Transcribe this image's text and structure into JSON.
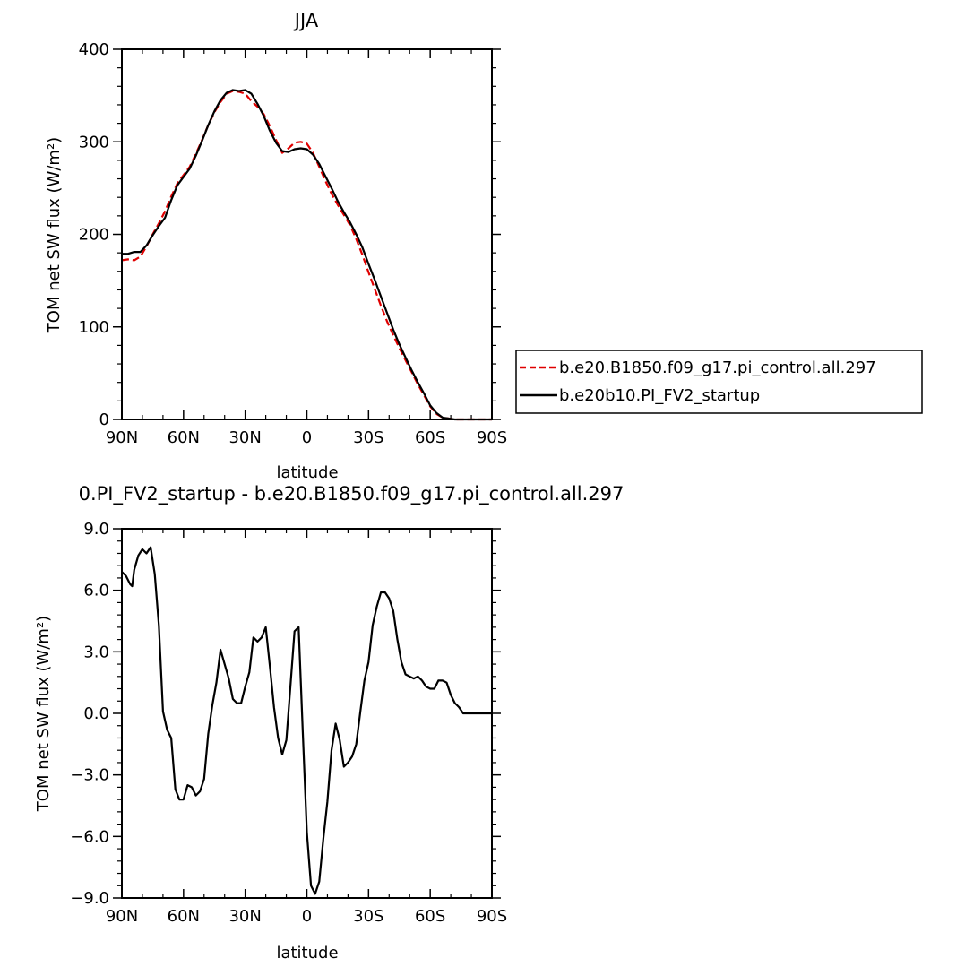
{
  "chart_data": [
    {
      "type": "line",
      "title": "JJA",
      "xlabel": "latitude",
      "ylabel": "TOM net SW flux (W/m²)",
      "ylim": [
        0,
        400
      ],
      "xlim": [
        90,
        -90
      ],
      "x_tick_labels": [
        "90N",
        "60N",
        "30N",
        "0",
        "30S",
        "60S",
        "90S"
      ],
      "y_tick_labels": [
        "0",
        "100",
        "200",
        "300",
        "400"
      ],
      "legend_position": "right",
      "series": [
        {
          "name": "b.e20.B1850.f09_g17.pi_control.all.297",
          "color": "#e00000",
          "style": "dashed",
          "x": [
            90,
            87,
            84,
            81,
            78,
            75,
            72,
            69,
            66,
            63,
            60,
            57,
            54,
            51,
            48,
            45,
            42,
            39,
            36,
            33,
            30,
            27,
            24,
            21,
            18,
            15,
            12,
            9,
            6,
            3,
            0,
            -3,
            -6,
            -9,
            -12,
            -15,
            -18,
            -21,
            -24,
            -27,
            -30,
            -33,
            -36,
            -39,
            -42,
            -45,
            -48,
            -51,
            -54,
            -57,
            -60,
            -63,
            -66,
            -69,
            -72,
            -75,
            -78,
            -81,
            -84,
            -87,
            -90
          ],
          "y": [
            172,
            173,
            172,
            176,
            187,
            200,
            212,
            225,
            241,
            255,
            264,
            273,
            287,
            302,
            318,
            332,
            343,
            352,
            355,
            354,
            352,
            344,
            338,
            330,
            317,
            302,
            288,
            293,
            299,
            300,
            298,
            288,
            273,
            258,
            244,
            232,
            221,
            210,
            195,
            178,
            159,
            141,
            123,
            106,
            91,
            77,
            64,
            51,
            38,
            26,
            14,
            6,
            2,
            1,
            0,
            0,
            0,
            0,
            0,
            0,
            0
          ]
        },
        {
          "name": "b.e20b10.PI_FV2_startup",
          "color": "#000000",
          "style": "solid",
          "x": [
            90,
            87,
            84,
            81,
            78,
            75,
            72,
            69,
            66,
            63,
            60,
            57,
            54,
            51,
            48,
            45,
            42,
            39,
            36,
            33,
            30,
            27,
            24,
            21,
            18,
            15,
            12,
            9,
            6,
            3,
            0,
            -3,
            -6,
            -9,
            -12,
            -15,
            -18,
            -21,
            -24,
            -27,
            -30,
            -33,
            -36,
            -39,
            -42,
            -45,
            -48,
            -51,
            -54,
            -57,
            -60,
            -63,
            -66,
            -69,
            -72,
            -75,
            -78,
            -81,
            -84,
            -87,
            -90
          ],
          "y": [
            179,
            179,
            181,
            181,
            188,
            199,
            209,
            218,
            237,
            253,
            262,
            271,
            285,
            301,
            318,
            333,
            345,
            353,
            356,
            355,
            356,
            352,
            341,
            328,
            312,
            299,
            290,
            289,
            292,
            293,
            292,
            286,
            276,
            263,
            250,
            236,
            224,
            213,
            200,
            186,
            168,
            151,
            133,
            115,
            97,
            81,
            67,
            53,
            40,
            28,
            15,
            7,
            2,
            1,
            0,
            0,
            0,
            0,
            0,
            0,
            0
          ]
        }
      ]
    },
    {
      "type": "line",
      "title": "0.PI_FV2_startup - b.e20.B1850.f09_g17.pi_control.all.297",
      "xlabel": "latitude",
      "ylabel": "TOM net SW flux (W/m²)",
      "ylim": [
        -9,
        9
      ],
      "xlim": [
        90,
        -90
      ],
      "x_tick_labels": [
        "90N",
        "60N",
        "30N",
        "0",
        "30S",
        "60S",
        "90S"
      ],
      "y_tick_labels": [
        "-9.0",
        "-6.0",
        "-3.0",
        "0.0",
        "3.0",
        "6.0",
        "9.0"
      ],
      "series": [
        {
          "color": "#000000",
          "style": "solid",
          "x": [
            90,
            88,
            86,
            85,
            84,
            82,
            80,
            78,
            76,
            74,
            72,
            70,
            68,
            66,
            64,
            62,
            60,
            58,
            56,
            54,
            52,
            50,
            48,
            46,
            44,
            42,
            40,
            38,
            36,
            34,
            32,
            30,
            28,
            26,
            24,
            22,
            20,
            18,
            16,
            14,
            12,
            10,
            8,
            6,
            4,
            2,
            0,
            -2,
            -4,
            -6,
            -8,
            -10,
            -12,
            -14,
            -16,
            -18,
            -20,
            -22,
            -24,
            -26,
            -28,
            -30,
            -32,
            -34,
            -36,
            -38,
            -40,
            -42,
            -44,
            -46,
            -48,
            -50,
            -52,
            -54,
            -56,
            -58,
            -60,
            -62,
            -64,
            -66,
            -68,
            -70,
            -72,
            -74,
            -76,
            -80,
            -85,
            -90
          ],
          "y": [
            6.9,
            6.7,
            6.3,
            6.2,
            7.0,
            7.7,
            8.0,
            7.8,
            8.1,
            6.8,
            4.3,
            0.1,
            -0.8,
            -1.2,
            -3.7,
            -4.2,
            -4.2,
            -3.5,
            -3.6,
            -4.0,
            -3.8,
            -3.2,
            -1.0,
            0.4,
            1.5,
            3.1,
            2.4,
            1.7,
            0.7,
            0.5,
            0.5,
            1.3,
            2.0,
            3.7,
            3.5,
            3.7,
            4.2,
            2.3,
            0.3,
            -1.2,
            -2.0,
            -1.3,
            1.3,
            4.0,
            4.2,
            -0.9,
            -5.8,
            -8.4,
            -8.8,
            -8.2,
            -6.1,
            -4.3,
            -1.8,
            -0.5,
            -1.3,
            -2.6,
            -2.4,
            -2.1,
            -1.5,
            0.1,
            1.6,
            2.5,
            4.3,
            5.2,
            5.9,
            5.9,
            5.6,
            5.0,
            3.6,
            2.5,
            1.9,
            1.8,
            1.7,
            1.8,
            1.6,
            1.3,
            1.2,
            1.2,
            1.6,
            1.6,
            1.5,
            0.9,
            0.5,
            0.3,
            0.0,
            0.0,
            0.0,
            0.0
          ]
        }
      ]
    }
  ]
}
